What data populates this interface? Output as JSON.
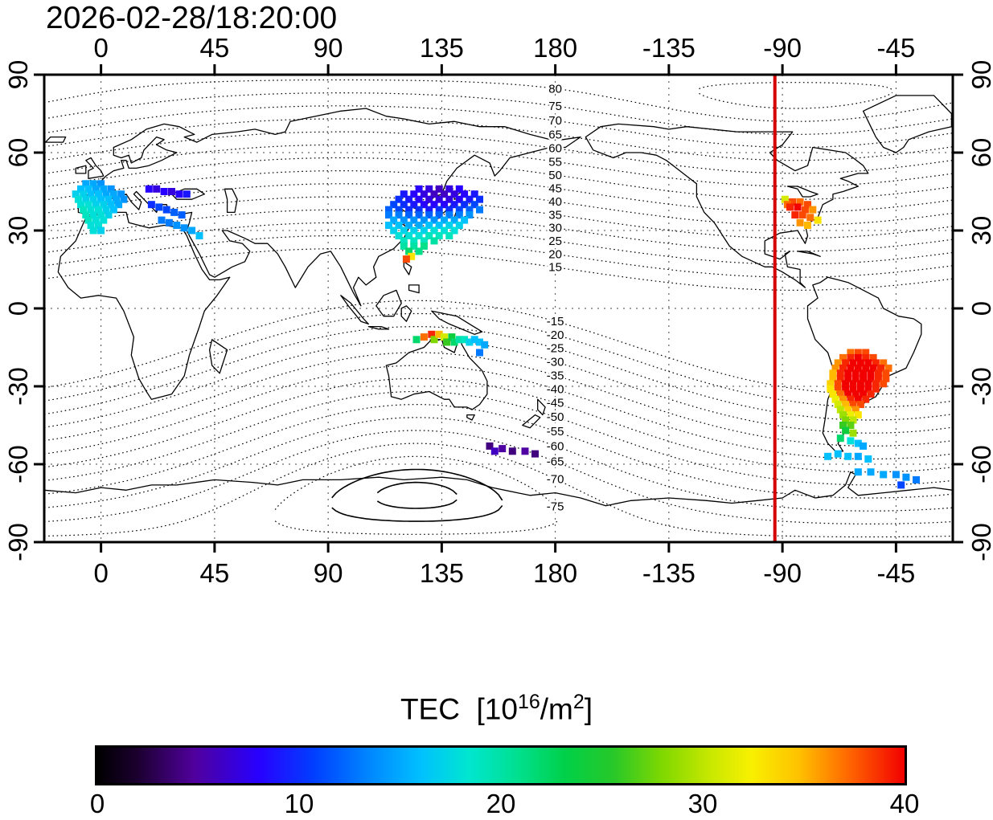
{
  "title": "2026-02-28/18:20:00",
  "axes": {
    "top": {
      "labels": [
        "0",
        "45",
        "90",
        "135",
        "180",
        "-135",
        "-90",
        "-45"
      ],
      "lons": [
        0,
        45,
        90,
        135,
        180,
        225,
        270,
        315
      ]
    },
    "left": {
      "labels": [
        "90",
        "60",
        "30",
        "0",
        "-30",
        "-60",
        "-90"
      ],
      "lats": [
        90,
        60,
        30,
        0,
        -30,
        -60,
        -90
      ]
    }
  },
  "chart_data": {
    "type": "scatter",
    "title": "2026-02-28/18:20:00",
    "map": {
      "projection": "equirectangular",
      "lon_range": [
        -22.5,
        337.5
      ],
      "lat_range": [
        -90,
        90
      ],
      "grid_lons": [
        0,
        45,
        90,
        135,
        180,
        225,
        270,
        315
      ],
      "grid_lats": [
        -60,
        -30,
        0,
        30,
        60
      ]
    },
    "red_meridian_lon": -93,
    "contours": {
      "description": "dotted magnetic-latitude contours",
      "north_levels": [
        15,
        20,
        25,
        30,
        35,
        40,
        45,
        50,
        55,
        60,
        65,
        70,
        75,
        80,
        85
      ],
      "south_levels": [
        -15,
        -20,
        -25,
        -30,
        -35,
        -40,
        -45,
        -50,
        -55,
        -60,
        -65,
        -70,
        -75,
        -80,
        -85
      ],
      "labeled_north": [
        80,
        75,
        70,
        65,
        60,
        55,
        50,
        45,
        40,
        35,
        30,
        25,
        20,
        15
      ],
      "labeled_south": [
        -15,
        -20,
        -25,
        -30,
        -35,
        -40,
        -45,
        -50,
        -55,
        -60,
        -65,
        -70,
        -75
      ],
      "solid_levels": [
        -80,
        -85
      ],
      "north_pole": {
        "lat": 82,
        "lon": -85
      },
      "south_pole_antipode": {
        "lat": 72,
        "lon": -55
      },
      "label_lon": 180
    },
    "colorbar": {
      "t1": "TEC  [10",
      "sup1": "16",
      "t2": "/m",
      "sup2": "2",
      "t3": "]",
      "min": 0,
      "max": 40,
      "ticks": [
        "0",
        "10",
        "20",
        "30",
        "40"
      ],
      "tick_values": [
        0,
        10,
        20,
        30,
        40
      ],
      "stops": [
        [
          0.0,
          "#000000"
        ],
        [
          0.05,
          "#1c0030"
        ],
        [
          0.12,
          "#50009c"
        ],
        [
          0.2,
          "#2800ff"
        ],
        [
          0.27,
          "#0040ff"
        ],
        [
          0.33,
          "#0080ff"
        ],
        [
          0.4,
          "#00c0ff"
        ],
        [
          0.46,
          "#00e6d0"
        ],
        [
          0.52,
          "#00e090"
        ],
        [
          0.58,
          "#00d048"
        ],
        [
          0.64,
          "#28c828"
        ],
        [
          0.7,
          "#80d800"
        ],
        [
          0.76,
          "#c8e800"
        ],
        [
          0.81,
          "#f8f000"
        ],
        [
          0.87,
          "#ffc000"
        ],
        [
          0.93,
          "#ff6800"
        ],
        [
          1.0,
          "#f20000"
        ]
      ]
    },
    "points_lon_lat_tec": [
      [
        -6,
        48,
        15
      ],
      [
        -3,
        48,
        15
      ],
      [
        0,
        48,
        14
      ],
      [
        -8,
        46,
        16
      ],
      [
        -5,
        46,
        16
      ],
      [
        -2,
        46,
        15
      ],
      [
        1,
        46,
        15
      ],
      [
        4,
        46,
        14
      ],
      [
        -10,
        44,
        17
      ],
      [
        -7,
        44,
        17
      ],
      [
        -4,
        44,
        16
      ],
      [
        -1,
        44,
        16
      ],
      [
        2,
        44,
        15
      ],
      [
        5,
        44,
        15
      ],
      [
        8,
        44,
        14
      ],
      [
        -9,
        42,
        18
      ],
      [
        -6,
        42,
        17
      ],
      [
        -3,
        42,
        17
      ],
      [
        0,
        42,
        16
      ],
      [
        3,
        42,
        16
      ],
      [
        6,
        42,
        15
      ],
      [
        9,
        42,
        14
      ],
      [
        -8,
        40,
        18
      ],
      [
        -5,
        40,
        18
      ],
      [
        -2,
        40,
        17
      ],
      [
        1,
        40,
        17
      ],
      [
        4,
        40,
        16
      ],
      [
        7,
        40,
        15
      ],
      [
        -7,
        38,
        19
      ],
      [
        -4,
        38,
        18
      ],
      [
        -1,
        38,
        18
      ],
      [
        2,
        38,
        17
      ],
      [
        5,
        38,
        16
      ],
      [
        -6,
        36,
        19
      ],
      [
        -3,
        36,
        18
      ],
      [
        0,
        36,
        18
      ],
      [
        3,
        36,
        17
      ],
      [
        -5,
        34,
        19
      ],
      [
        -2,
        34,
        18
      ],
      [
        1,
        34,
        18
      ],
      [
        -4,
        32,
        18
      ],
      [
        -1,
        32,
        18
      ],
      [
        -3,
        30,
        18
      ],
      [
        0,
        30,
        17
      ],
      [
        19,
        46,
        8
      ],
      [
        22,
        46,
        7
      ],
      [
        25,
        45,
        8
      ],
      [
        28,
        45,
        7
      ],
      [
        31,
        44,
        8
      ],
      [
        34,
        44,
        9
      ],
      [
        20,
        40,
        10
      ],
      [
        23,
        39,
        11
      ],
      [
        26,
        38,
        11
      ],
      [
        29,
        37,
        12
      ],
      [
        32,
        36,
        12
      ],
      [
        24,
        34,
        13
      ],
      [
        27,
        33,
        13
      ],
      [
        30,
        32,
        14
      ],
      [
        33,
        31,
        14
      ],
      [
        36,
        30,
        15
      ],
      [
        39,
        28,
        16
      ],
      [
        126,
        46,
        8
      ],
      [
        130,
        46,
        7
      ],
      [
        134,
        46,
        6
      ],
      [
        138,
        46,
        7
      ],
      [
        142,
        46,
        8
      ],
      [
        120,
        44,
        9
      ],
      [
        124,
        44,
        8
      ],
      [
        128,
        44,
        7
      ],
      [
        132,
        44,
        6
      ],
      [
        136,
        44,
        6
      ],
      [
        140,
        44,
        7
      ],
      [
        144,
        44,
        8
      ],
      [
        148,
        44,
        9
      ],
      [
        118,
        42,
        10
      ],
      [
        122,
        42,
        9
      ],
      [
        126,
        42,
        8
      ],
      [
        130,
        42,
        7
      ],
      [
        134,
        42,
        7
      ],
      [
        138,
        42,
        7
      ],
      [
        142,
        42,
        8
      ],
      [
        146,
        42,
        9
      ],
      [
        150,
        42,
        10
      ],
      [
        116,
        40,
        11
      ],
      [
        120,
        40,
        10
      ],
      [
        124,
        40,
        9
      ],
      [
        128,
        40,
        8
      ],
      [
        132,
        40,
        8
      ],
      [
        136,
        40,
        8
      ],
      [
        140,
        40,
        9
      ],
      [
        144,
        40,
        10
      ],
      [
        148,
        40,
        11
      ],
      [
        114,
        38,
        12
      ],
      [
        118,
        38,
        11
      ],
      [
        122,
        38,
        10
      ],
      [
        126,
        38,
        10
      ],
      [
        130,
        38,
        9
      ],
      [
        134,
        38,
        10
      ],
      [
        138,
        38,
        10
      ],
      [
        142,
        38,
        11
      ],
      [
        146,
        38,
        12
      ],
      [
        150,
        38,
        13
      ],
      [
        114,
        36,
        13
      ],
      [
        118,
        36,
        13
      ],
      [
        122,
        36,
        12
      ],
      [
        126,
        36,
        12
      ],
      [
        130,
        36,
        12
      ],
      [
        134,
        36,
        12
      ],
      [
        138,
        36,
        13
      ],
      [
        142,
        36,
        13
      ],
      [
        146,
        36,
        14
      ],
      [
        116,
        34,
        15
      ],
      [
        120,
        34,
        14
      ],
      [
        124,
        34,
        14
      ],
      [
        128,
        34,
        14
      ],
      [
        132,
        34,
        14
      ],
      [
        136,
        34,
        15
      ],
      [
        140,
        34,
        15
      ],
      [
        144,
        34,
        16
      ],
      [
        114,
        32,
        16
      ],
      [
        118,
        32,
        16
      ],
      [
        122,
        32,
        15
      ],
      [
        126,
        32,
        15
      ],
      [
        130,
        32,
        16
      ],
      [
        134,
        32,
        16
      ],
      [
        138,
        32,
        17
      ],
      [
        142,
        32,
        17
      ],
      [
        116,
        30,
        17
      ],
      [
        120,
        30,
        17
      ],
      [
        124,
        30,
        17
      ],
      [
        128,
        30,
        17
      ],
      [
        132,
        30,
        18
      ],
      [
        136,
        30,
        18
      ],
      [
        140,
        30,
        18
      ],
      [
        118,
        28,
        18
      ],
      [
        122,
        28,
        18
      ],
      [
        126,
        28,
        18
      ],
      [
        130,
        28,
        19
      ],
      [
        134,
        28,
        19
      ],
      [
        138,
        28,
        19
      ],
      [
        120,
        26,
        19
      ],
      [
        124,
        26,
        19
      ],
      [
        128,
        26,
        19
      ],
      [
        132,
        26,
        20
      ],
      [
        120,
        24,
        20
      ],
      [
        124,
        24,
        20
      ],
      [
        128,
        24,
        21
      ],
      [
        122,
        22,
        22
      ],
      [
        126,
        22,
        21
      ],
      [
        123,
        20,
        33
      ],
      [
        121,
        19,
        38
      ],
      [
        125,
        -12,
        22
      ],
      [
        128,
        -11,
        37
      ],
      [
        131,
        -10,
        39
      ],
      [
        132,
        -12,
        28
      ],
      [
        134,
        -10,
        35
      ],
      [
        136,
        -11,
        31
      ],
      [
        137,
        -13,
        26
      ],
      [
        139,
        -11,
        24
      ],
      [
        140,
        -13,
        22
      ],
      [
        142,
        -12,
        20
      ],
      [
        144,
        -12,
        19
      ],
      [
        146,
        -13,
        17
      ],
      [
        148,
        -12,
        16
      ],
      [
        150,
        -13,
        16
      ],
      [
        152,
        -14,
        15
      ],
      [
        150,
        -17,
        13
      ],
      [
        154,
        -53,
        4
      ],
      [
        159,
        -54,
        5
      ],
      [
        163,
        -55,
        4
      ],
      [
        168,
        -55,
        5
      ],
      [
        172,
        -56,
        4
      ],
      [
        156,
        -55,
        6
      ],
      [
        -89,
        42,
        31
      ],
      [
        -86,
        41,
        38
      ],
      [
        -83,
        41,
        37
      ],
      [
        -80,
        40,
        38
      ],
      [
        -88,
        40,
        37
      ],
      [
        -87,
        39,
        39
      ],
      [
        -84,
        39,
        40
      ],
      [
        -81,
        38,
        38
      ],
      [
        -78,
        38,
        36
      ],
      [
        -85,
        36,
        39
      ],
      [
        -82,
        36,
        38
      ],
      [
        -79,
        35,
        37
      ],
      [
        -83,
        33,
        36
      ],
      [
        -80,
        32,
        35
      ],
      [
        -76,
        34,
        33
      ],
      [
        -63,
        -17,
        37
      ],
      [
        -60,
        -17,
        38
      ],
      [
        -57,
        -17,
        38
      ],
      [
        -66,
        -19,
        37
      ],
      [
        -63,
        -19,
        39
      ],
      [
        -60,
        -19,
        40
      ],
      [
        -57,
        -19,
        39
      ],
      [
        -54,
        -19,
        38
      ],
      [
        -68,
        -21,
        36
      ],
      [
        -65,
        -21,
        39
      ],
      [
        -62,
        -21,
        40
      ],
      [
        -59,
        -21,
        40
      ],
      [
        -56,
        -21,
        40
      ],
      [
        -53,
        -21,
        39
      ],
      [
        -50,
        -21,
        37
      ],
      [
        -69,
        -23,
        36
      ],
      [
        -66,
        -23,
        39
      ],
      [
        -63,
        -23,
        40
      ],
      [
        -60,
        -23,
        40
      ],
      [
        -57,
        -23,
        40
      ],
      [
        -54,
        -23,
        40
      ],
      [
        -51,
        -23,
        39
      ],
      [
        -48,
        -23,
        37
      ],
      [
        -70,
        -25,
        35
      ],
      [
        -67,
        -25,
        39
      ],
      [
        -64,
        -25,
        40
      ],
      [
        -61,
        -25,
        40
      ],
      [
        -58,
        -25,
        40
      ],
      [
        -55,
        -25,
        40
      ],
      [
        -52,
        -25,
        39
      ],
      [
        -49,
        -25,
        38
      ],
      [
        -70,
        -27,
        35
      ],
      [
        -67,
        -27,
        39
      ],
      [
        -64,
        -27,
        40
      ],
      [
        -61,
        -27,
        40
      ],
      [
        -58,
        -27,
        40
      ],
      [
        -55,
        -27,
        40
      ],
      [
        -52,
        -27,
        39
      ],
      [
        -49,
        -27,
        38
      ],
      [
        -71,
        -29,
        34
      ],
      [
        -68,
        -29,
        38
      ],
      [
        -65,
        -29,
        40
      ],
      [
        -62,
        -29,
        40
      ],
      [
        -59,
        -29,
        40
      ],
      [
        -56,
        -29,
        40
      ],
      [
        -53,
        -29,
        39
      ],
      [
        -50,
        -29,
        38
      ],
      [
        -71,
        -31,
        33
      ],
      [
        -68,
        -31,
        38
      ],
      [
        -65,
        -31,
        40
      ],
      [
        -62,
        -31,
        40
      ],
      [
        -59,
        -31,
        40
      ],
      [
        -56,
        -31,
        40
      ],
      [
        -53,
        -31,
        39
      ],
      [
        -70,
        -33,
        33
      ],
      [
        -67,
        -33,
        37
      ],
      [
        -64,
        -33,
        40
      ],
      [
        -61,
        -33,
        40
      ],
      [
        -58,
        -33,
        40
      ],
      [
        -55,
        -33,
        39
      ],
      [
        -69,
        -35,
        32
      ],
      [
        -66,
        -35,
        36
      ],
      [
        -63,
        -35,
        39
      ],
      [
        -60,
        -35,
        40
      ],
      [
        -57,
        -35,
        39
      ],
      [
        -68,
        -37,
        31
      ],
      [
        -65,
        -37,
        35
      ],
      [
        -62,
        -37,
        38
      ],
      [
        -59,
        -37,
        38
      ],
      [
        -67,
        -39,
        30
      ],
      [
        -64,
        -39,
        34
      ],
      [
        -61,
        -39,
        36
      ],
      [
        -66,
        -41,
        29
      ],
      [
        -63,
        -41,
        32
      ],
      [
        -60,
        -41,
        33
      ],
      [
        -65,
        -43,
        28
      ],
      [
        -62,
        -43,
        30
      ],
      [
        -66,
        -45,
        26
      ],
      [
        -63,
        -45,
        27
      ],
      [
        -65,
        -47,
        24
      ],
      [
        -62,
        -48,
        29
      ],
      [
        -67,
        -50,
        22
      ],
      [
        -63,
        -51,
        18
      ],
      [
        -60,
        -52,
        16
      ],
      [
        -58,
        -53,
        15
      ],
      [
        -72,
        -57,
        16
      ],
      [
        -68,
        -56,
        16
      ],
      [
        -64,
        -57,
        16
      ],
      [
        -60,
        -57,
        15
      ],
      [
        -56,
        -58,
        16
      ],
      [
        -60,
        -63,
        15
      ],
      [
        -55,
        -63,
        15
      ],
      [
        -50,
        -64,
        15
      ],
      [
        -45,
        -64,
        14
      ],
      [
        -41,
        -65,
        14
      ],
      [
        -37,
        -66,
        13
      ],
      [
        -43,
        -68,
        11
      ]
    ]
  }
}
